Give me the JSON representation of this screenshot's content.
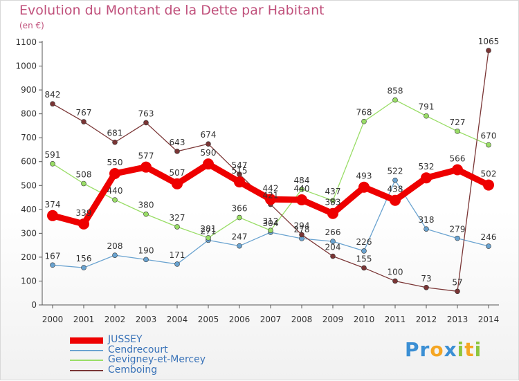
{
  "title": "Evolution du Montant de la Dette par Habitant",
  "unit": "(en €)",
  "brand": {
    "letters": [
      {
        "ch": "P",
        "color": "#3b8fd4"
      },
      {
        "ch": "r",
        "color": "#3b8fd4"
      },
      {
        "ch": "o",
        "color": "#f5a623"
      },
      {
        "ch": "x",
        "color": "#3b8fd4"
      },
      {
        "ch": "i",
        "color": "#8cc63f"
      },
      {
        "ch": "t",
        "color": "#f5a623"
      },
      {
        "ch": "i",
        "color": "#8cc63f"
      }
    ]
  },
  "chart_data": {
    "type": "line",
    "title": "Evolution du Montant de la Dette par Habitant",
    "ylabel": "(en €)",
    "x": [
      "2000",
      "2001",
      "2002",
      "2003",
      "2004",
      "2005",
      "2006",
      "2007",
      "2008",
      "2009",
      "2010",
      "2011",
      "2012",
      "2013",
      "2014"
    ],
    "ylim": [
      0,
      1100
    ],
    "yticks": [
      0,
      100,
      200,
      300,
      400,
      500,
      600,
      700,
      800,
      900,
      1000,
      1100
    ],
    "grid": false,
    "legend_position": "bottom-left",
    "series": [
      {
        "name": "JUSSEY",
        "color": "#ee0000",
        "width": 9,
        "marker": 8,
        "values": [
          374,
          339,
          550,
          577,
          507,
          590,
          515,
          442,
          440,
          383,
          493,
          438,
          532,
          566,
          502
        ]
      },
      {
        "name": "Cendrecourt",
        "color": "#6aa3d0",
        "width": 1.3,
        "marker": 3.5,
        "values": [
          167,
          156,
          208,
          190,
          171,
          271,
          247,
          304,
          278,
          266,
          226,
          522,
          318,
          279,
          246
        ]
      },
      {
        "name": "Gevigney-et-Mercey",
        "color": "#99dd66",
        "width": 1.3,
        "marker": 3.5,
        "values": [
          591,
          508,
          440,
          380,
          327,
          281,
          366,
          312,
          484,
          437,
          768,
          858,
          791,
          727,
          670
        ]
      },
      {
        "name": "Cemboing",
        "color": "#7a3535",
        "width": 1.3,
        "marker": 3.5,
        "values": [
          842,
          767,
          681,
          763,
          643,
          674,
          547,
          421,
          294,
          204,
          155,
          100,
          73,
          57,
          1065
        ]
      }
    ]
  }
}
